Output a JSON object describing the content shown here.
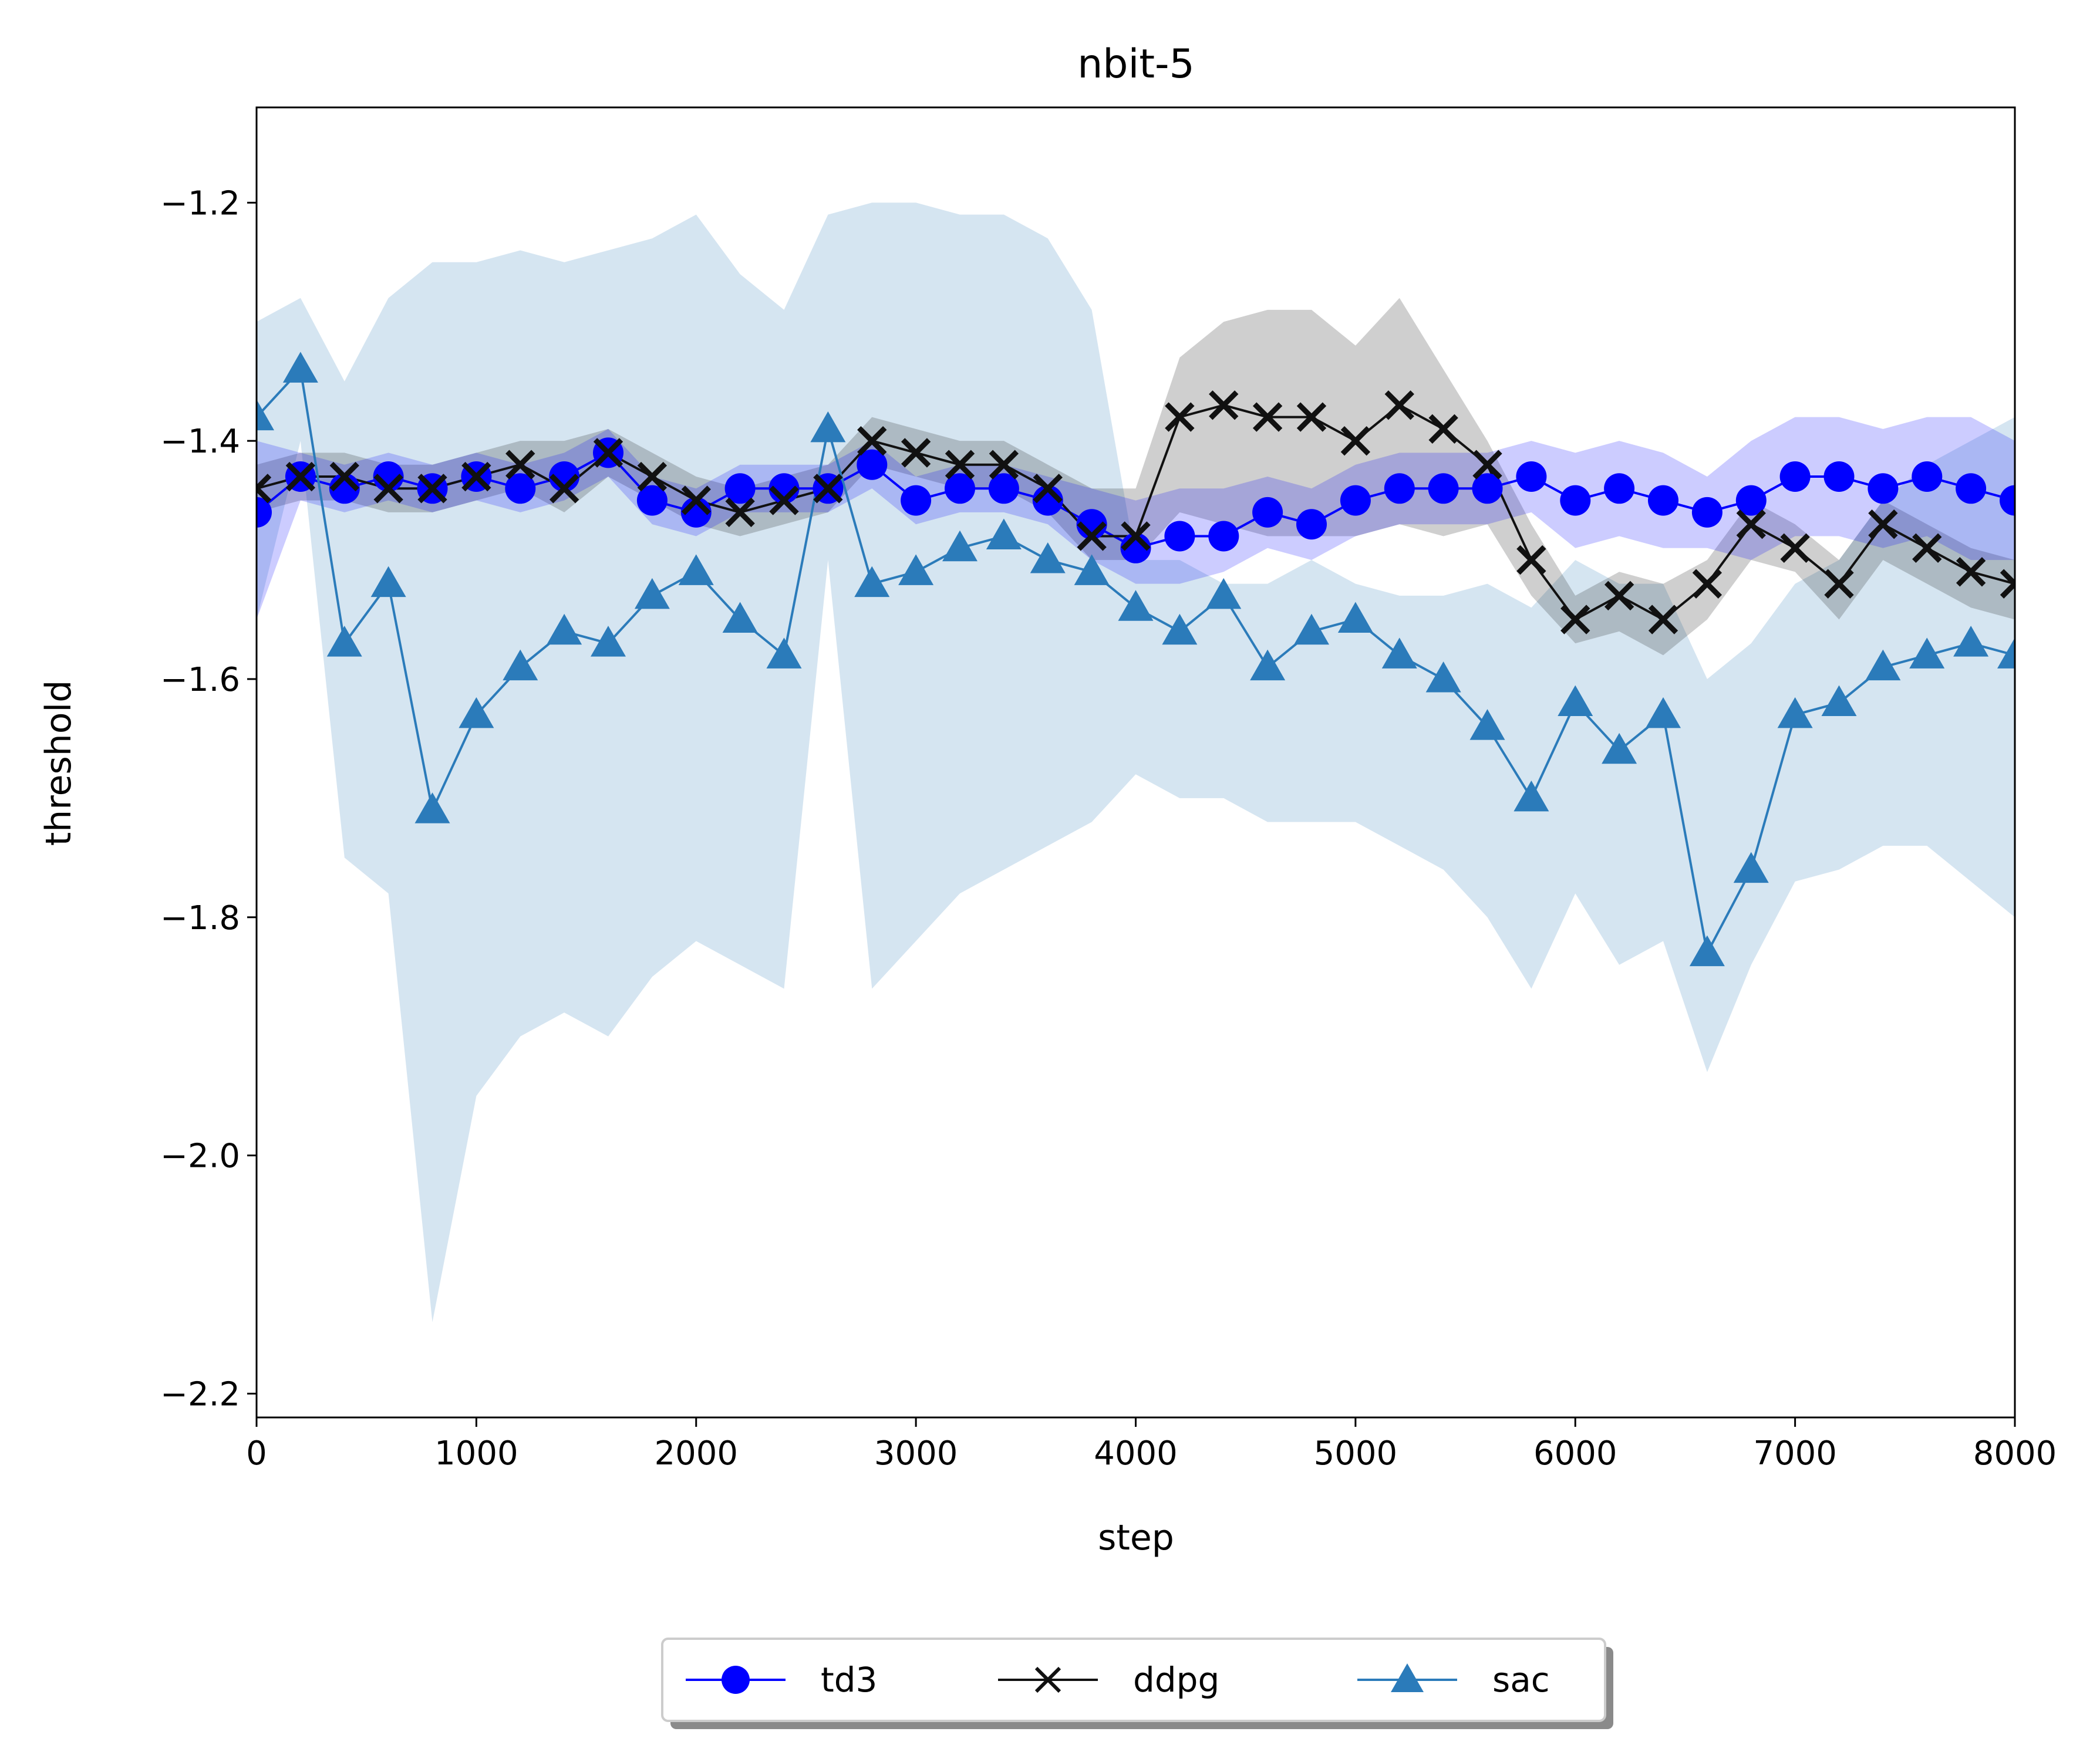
{
  "chart_data": {
    "type": "line",
    "title": "nbit-5",
    "xlabel": "step",
    "ylabel": "threshold",
    "xlim": [
      0,
      8000
    ],
    "ylim": [
      -2.22,
      -1.12
    ],
    "xticks": [
      0,
      1000,
      2000,
      3000,
      4000,
      5000,
      6000,
      7000,
      8000
    ],
    "xtick_labels": [
      "0",
      "1000",
      "2000",
      "3000",
      "4000",
      "5000",
      "6000",
      "7000",
      "8000"
    ],
    "yticks": [
      -2.2,
      -2.0,
      -1.8,
      -1.6,
      -1.4,
      -1.2
    ],
    "ytick_labels": [
      "−2.2",
      "−2.0",
      "−1.8",
      "−1.6",
      "−1.4",
      "−1.2"
    ],
    "grid": false,
    "legend_position": "bottom-center",
    "x": [
      0,
      200,
      400,
      600,
      800,
      1000,
      1200,
      1400,
      1600,
      1800,
      2000,
      2200,
      2400,
      2600,
      2800,
      3000,
      3200,
      3400,
      3600,
      3800,
      4000,
      4200,
      4400,
      4600,
      4800,
      5000,
      5200,
      5400,
      5600,
      5800,
      6000,
      6200,
      6400,
      6600,
      6800,
      7000,
      7200,
      7400,
      7600,
      7800,
      8000
    ],
    "series": [
      {
        "name": "td3",
        "color": "#0000ff",
        "marker": "circle",
        "values": [
          -1.46,
          -1.43,
          -1.44,
          -1.43,
          -1.44,
          -1.43,
          -1.44,
          -1.43,
          -1.41,
          -1.45,
          -1.46,
          -1.44,
          -1.44,
          -1.44,
          -1.42,
          -1.45,
          -1.44,
          -1.44,
          -1.45,
          -1.47,
          -1.49,
          -1.48,
          -1.48,
          -1.46,
          -1.47,
          -1.45,
          -1.44,
          -1.44,
          -1.44,
          -1.43,
          -1.45,
          -1.44,
          -1.45,
          -1.46,
          -1.45,
          -1.43,
          -1.43,
          -1.44,
          -1.43,
          -1.44,
          -1.45
        ],
        "band_upper": [
          -1.4,
          -1.41,
          -1.42,
          -1.41,
          -1.42,
          -1.41,
          -1.42,
          -1.41,
          -1.39,
          -1.43,
          -1.44,
          -1.42,
          -1.42,
          -1.42,
          -1.4,
          -1.43,
          -1.42,
          -1.42,
          -1.43,
          -1.44,
          -1.45,
          -1.44,
          -1.44,
          -1.43,
          -1.44,
          -1.42,
          -1.41,
          -1.41,
          -1.41,
          -1.4,
          -1.41,
          -1.4,
          -1.41,
          -1.43,
          -1.4,
          -1.38,
          -1.38,
          -1.39,
          -1.38,
          -1.38,
          -1.4
        ],
        "band_lower": [
          -1.55,
          -1.45,
          -1.46,
          -1.45,
          -1.46,
          -1.45,
          -1.46,
          -1.45,
          -1.43,
          -1.47,
          -1.48,
          -1.46,
          -1.46,
          -1.46,
          -1.44,
          -1.47,
          -1.46,
          -1.46,
          -1.47,
          -1.5,
          -1.52,
          -1.52,
          -1.51,
          -1.49,
          -1.5,
          -1.48,
          -1.47,
          -1.47,
          -1.47,
          -1.46,
          -1.49,
          -1.48,
          -1.49,
          -1.49,
          -1.5,
          -1.48,
          -1.48,
          -1.49,
          -1.48,
          -1.5,
          -1.5
        ]
      },
      {
        "name": "ddpg",
        "color": "#111111",
        "marker": "x",
        "values": [
          -1.44,
          -1.43,
          -1.43,
          -1.44,
          -1.44,
          -1.43,
          -1.42,
          -1.44,
          -1.41,
          -1.43,
          -1.45,
          -1.46,
          -1.45,
          -1.44,
          -1.4,
          -1.41,
          -1.42,
          -1.42,
          -1.44,
          -1.48,
          -1.48,
          -1.38,
          -1.37,
          -1.38,
          -1.38,
          -1.4,
          -1.37,
          -1.39,
          -1.42,
          -1.5,
          -1.55,
          -1.53,
          -1.55,
          -1.52,
          -1.47,
          -1.49,
          -1.52,
          -1.47,
          -1.49,
          -1.51,
          -1.52
        ],
        "band_upper": [
          -1.42,
          -1.41,
          -1.41,
          -1.42,
          -1.42,
          -1.41,
          -1.4,
          -1.4,
          -1.39,
          -1.41,
          -1.43,
          -1.44,
          -1.43,
          -1.42,
          -1.38,
          -1.39,
          -1.4,
          -1.4,
          -1.42,
          -1.44,
          -1.44,
          -1.33,
          -1.3,
          -1.29,
          -1.29,
          -1.32,
          -1.28,
          -1.34,
          -1.4,
          -1.47,
          -1.53,
          -1.51,
          -1.52,
          -1.5,
          -1.45,
          -1.47,
          -1.5,
          -1.45,
          -1.47,
          -1.49,
          -1.5
        ],
        "band_lower": [
          -1.46,
          -1.45,
          -1.45,
          -1.46,
          -1.46,
          -1.45,
          -1.44,
          -1.46,
          -1.43,
          -1.45,
          -1.47,
          -1.48,
          -1.47,
          -1.46,
          -1.42,
          -1.43,
          -1.44,
          -1.44,
          -1.46,
          -1.5,
          -1.5,
          -1.46,
          -1.47,
          -1.48,
          -1.48,
          -1.48,
          -1.47,
          -1.48,
          -1.47,
          -1.53,
          -1.57,
          -1.56,
          -1.58,
          -1.55,
          -1.5,
          -1.51,
          -1.55,
          -1.5,
          -1.52,
          -1.54,
          -1.55
        ]
      },
      {
        "name": "sac",
        "color": "#2b7bba",
        "marker": "triangle",
        "values": [
          -1.38,
          -1.34,
          -1.57,
          -1.52,
          -1.71,
          -1.63,
          -1.59,
          -1.56,
          -1.57,
          -1.53,
          -1.51,
          -1.55,
          -1.58,
          -1.39,
          -1.52,
          -1.51,
          -1.49,
          -1.48,
          -1.5,
          -1.51,
          -1.54,
          -1.56,
          -1.53,
          -1.59,
          -1.56,
          -1.55,
          -1.58,
          -1.6,
          -1.64,
          -1.7,
          -1.62,
          -1.66,
          -1.63,
          -1.83,
          -1.76,
          -1.63,
          -1.62,
          -1.59,
          -1.58,
          -1.57,
          -1.58
        ],
        "band_upper": [
          -1.3,
          -1.28,
          -1.35,
          -1.28,
          -1.25,
          -1.25,
          -1.24,
          -1.25,
          -1.24,
          -1.23,
          -1.21,
          -1.26,
          -1.29,
          -1.21,
          -1.2,
          -1.2,
          -1.21,
          -1.21,
          -1.23,
          -1.29,
          -1.5,
          -1.5,
          -1.52,
          -1.52,
          -1.5,
          -1.52,
          -1.53,
          -1.53,
          -1.52,
          -1.54,
          -1.5,
          -1.52,
          -1.52,
          -1.6,
          -1.57,
          -1.52,
          -1.5,
          -1.45,
          -1.42,
          -1.4,
          -1.38
        ],
        "band_lower": [
          -1.55,
          -1.4,
          -1.75,
          -1.78,
          -2.14,
          -1.95,
          -1.9,
          -1.88,
          -1.9,
          -1.85,
          -1.82,
          -1.84,
          -1.86,
          -1.5,
          -1.86,
          -1.82,
          -1.78,
          -1.76,
          -1.74,
          -1.72,
          -1.68,
          -1.7,
          -1.7,
          -1.72,
          -1.72,
          -1.72,
          -1.74,
          -1.76,
          -1.8,
          -1.86,
          -1.78,
          -1.84,
          -1.82,
          -1.93,
          -1.84,
          -1.77,
          -1.76,
          -1.74,
          -1.74,
          -1.77,
          -1.8
        ]
      }
    ]
  }
}
